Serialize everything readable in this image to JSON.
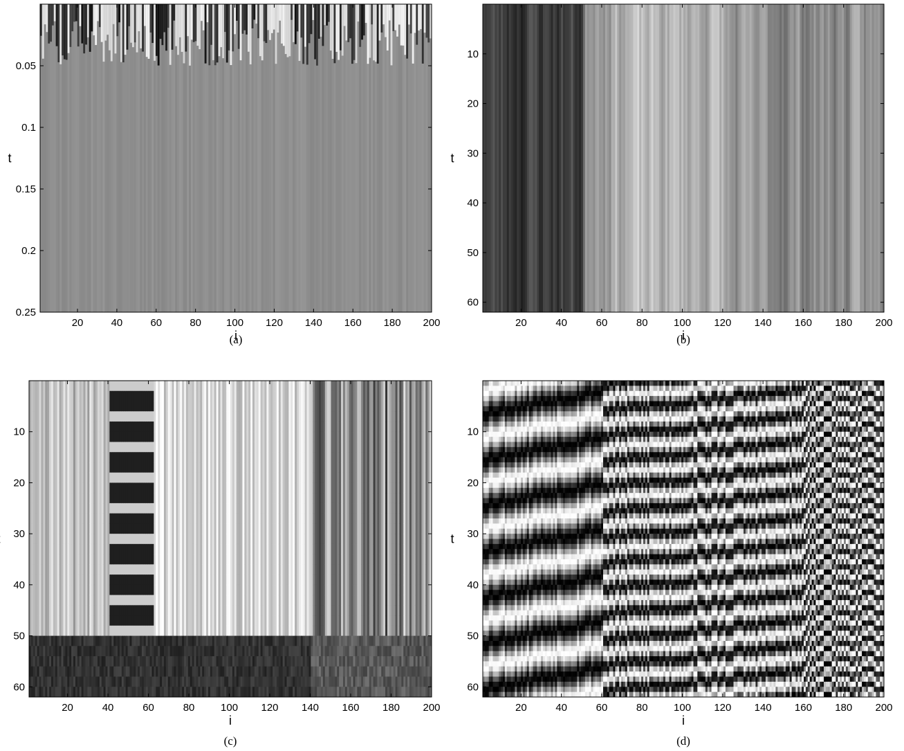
{
  "figure": {
    "panels": [
      {
        "id": "a",
        "caption": "(a)",
        "xlabel": "i",
        "ylabel": "t"
      },
      {
        "id": "b",
        "caption": "(b)",
        "xlabel": "i",
        "ylabel": "t"
      },
      {
        "id": "c",
        "caption": "(c)",
        "xlabel": "i",
        "ylabel": "t"
      },
      {
        "id": "d",
        "caption": "(d)",
        "xlabel": "i",
        "ylabel": "t"
      }
    ]
  },
  "chart_data": [
    {
      "type": "heatmap",
      "panel": "a",
      "colormap": "gray",
      "xlabel": "i",
      "ylabel": "t",
      "xlim": [
        1,
        200
      ],
      "ylim": [
        0,
        0.25
      ],
      "y_reversed": true,
      "xticks": [
        20,
        40,
        60,
        80,
        100,
        120,
        140,
        160,
        180,
        200
      ],
      "yticks": [
        0.05,
        0.1,
        0.15,
        0.2,
        0.25
      ],
      "ytick_labels": [
        "0.05",
        "0.1",
        "0.15",
        "0.2",
        "0.25"
      ],
      "pattern": "transient",
      "transient_until": 0.05,
      "caption": "(a)"
    },
    {
      "type": "heatmap",
      "panel": "b",
      "colormap": "gray",
      "xlabel": "i",
      "ylabel": "t",
      "xlim": [
        1,
        200
      ],
      "ylim": [
        0,
        62
      ],
      "y_reversed": true,
      "xticks": [
        20,
        40,
        60,
        80,
        100,
        120,
        140,
        160,
        180,
        200
      ],
      "yticks": [
        10,
        20,
        30,
        40,
        50,
        60
      ],
      "ytick_labels": [
        "10",
        "20",
        "30",
        "40",
        "50",
        "60"
      ],
      "pattern": "stationary",
      "caption": "(b)"
    },
    {
      "type": "heatmap",
      "panel": "c",
      "colormap": "gray",
      "xlabel": "i",
      "ylabel": "t",
      "xlim": [
        1,
        200
      ],
      "ylim": [
        0,
        62
      ],
      "y_reversed": true,
      "xticks": [
        20,
        40,
        60,
        80,
        100,
        120,
        140,
        160,
        180,
        200
      ],
      "yticks": [
        10,
        20,
        30,
        40,
        50,
        60
      ],
      "ytick_labels": [
        "10",
        "20",
        "30",
        "40",
        "50",
        "60"
      ],
      "pattern": "slow-drift",
      "caption": "(c)"
    },
    {
      "type": "heatmap",
      "panel": "d",
      "colormap": "gray",
      "xlabel": "i",
      "ylabel": "t",
      "xlim": [
        1,
        200
      ],
      "ylim": [
        0,
        62
      ],
      "y_reversed": true,
      "xticks": [
        20,
        40,
        60,
        80,
        100,
        120,
        140,
        160,
        180,
        200
      ],
      "yticks": [
        10,
        20,
        30,
        40,
        50,
        60
      ],
      "ytick_labels": [
        "10",
        "20",
        "30",
        "40",
        "50",
        "60"
      ],
      "pattern": "oscillating",
      "caption": "(d)"
    }
  ]
}
